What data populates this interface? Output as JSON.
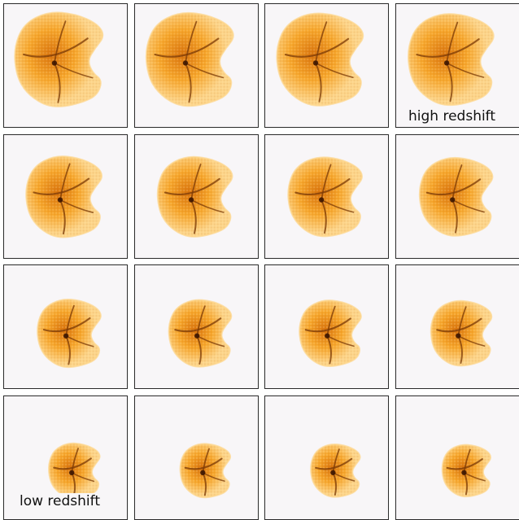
{
  "image": {
    "description_labels": {
      "high": "high redshift",
      "low": "low redshift"
    },
    "grid": {
      "rows": 4,
      "cols": 4
    },
    "colors": {
      "panel_bg": "#f8f6f8",
      "border": "#2a2a2a",
      "halo_light": "#fdd58a",
      "halo_mid": "#f7a62a",
      "halo_dark": "#d9730c",
      "filament": "#7a3806",
      "core": "#3c1602"
    }
  }
}
